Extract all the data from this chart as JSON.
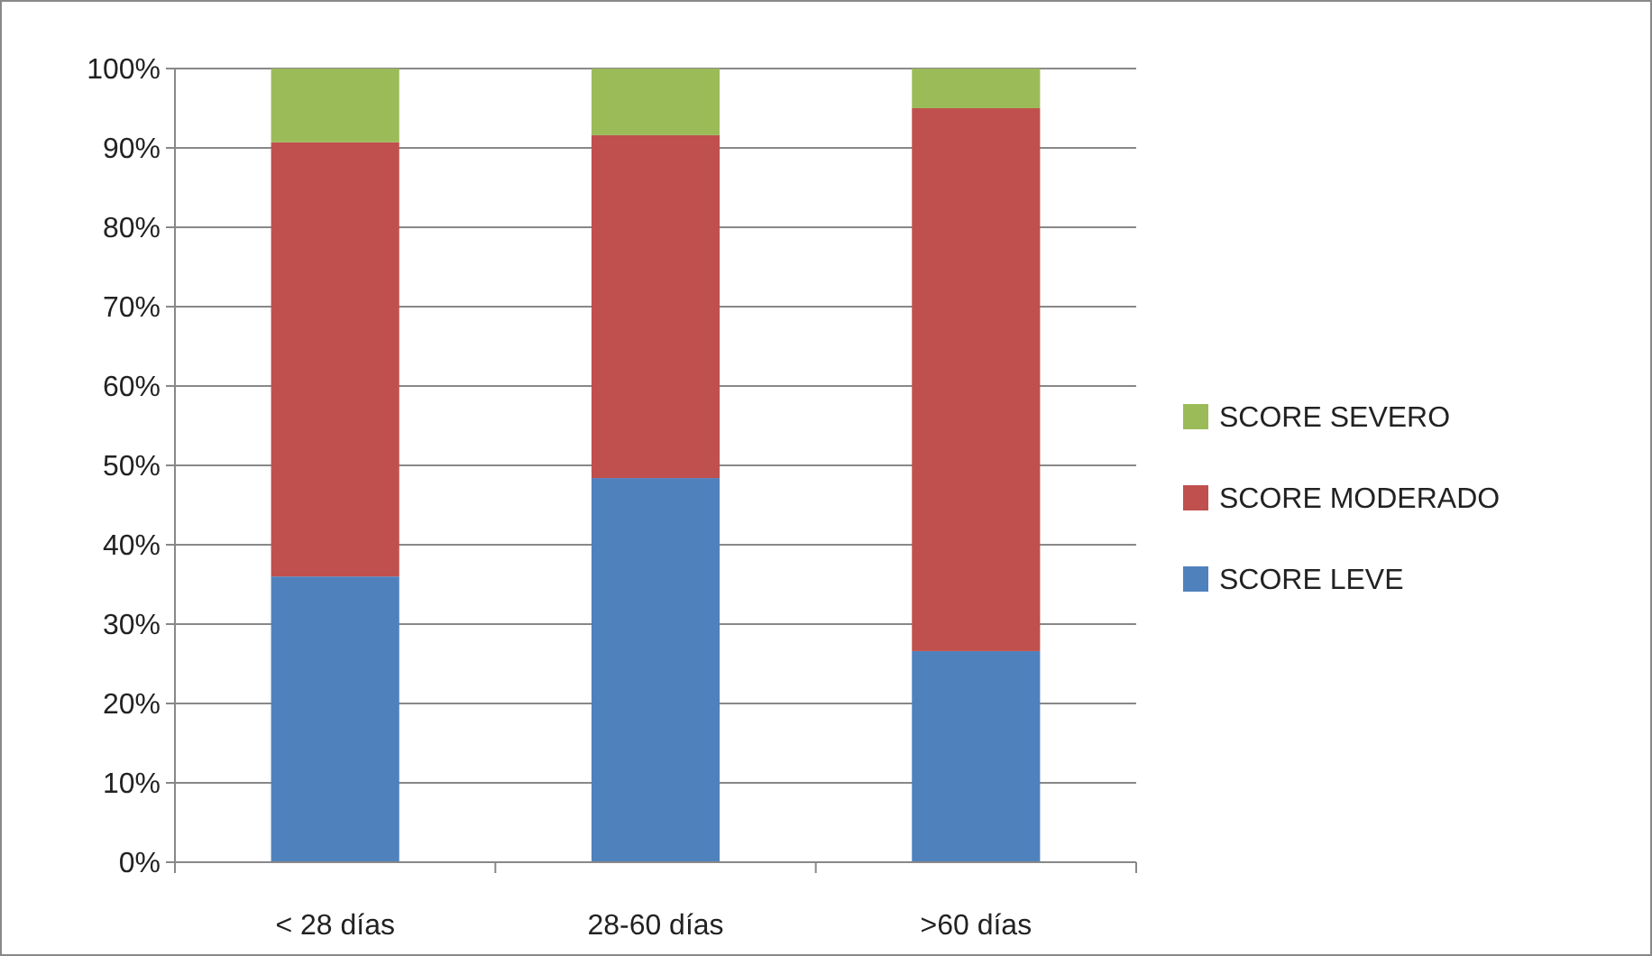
{
  "chart_data": {
    "type": "bar",
    "stacked": true,
    "categories": [
      "< 28 días",
      "28-60 días",
      ">60 días"
    ],
    "series": [
      {
        "name": "SCORE LEVE",
        "color": "#4f81bd",
        "values": [
          36,
          48.4,
          26.6
        ]
      },
      {
        "name": "SCORE MODERADO",
        "color": "#c0504d",
        "values": [
          54.7,
          43.2,
          68.4
        ]
      },
      {
        "name": "SCORE SEVERO",
        "color": "#9bbb59",
        "values": [
          9.3,
          8.4,
          5
        ]
      }
    ],
    "ylim": [
      0,
      100
    ],
    "yticks": [
      {
        "value": 0,
        "label": "0%"
      },
      {
        "value": 10,
        "label": "10%"
      },
      {
        "value": 20,
        "label": "20%"
      },
      {
        "value": 30,
        "label": "30%"
      },
      {
        "value": 40,
        "label": "40%"
      },
      {
        "value": 50,
        "label": "50%"
      },
      {
        "value": 60,
        "label": "60%"
      },
      {
        "value": 70,
        "label": "70%"
      },
      {
        "value": 80,
        "label": "80%"
      },
      {
        "value": 90,
        "label": "90%"
      },
      {
        "value": 100,
        "label": "100%"
      }
    ],
    "grid": "y",
    "legend": "right"
  }
}
